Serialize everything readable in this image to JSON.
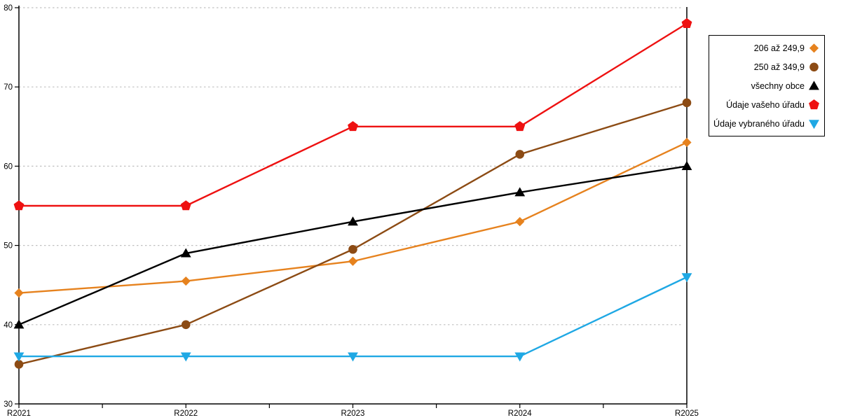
{
  "chart_data": {
    "type": "line",
    "title": "",
    "xlabel": "",
    "ylabel": "",
    "categories": [
      "R2021",
      "R2022",
      "R2023",
      "R2024",
      "R2025"
    ],
    "series": [
      {
        "name": "206 až 249,9",
        "marker": "diamond",
        "color": "#E6821E",
        "values": [
          44,
          45.5,
          48,
          53,
          63
        ]
      },
      {
        "name": "250 až 349,9",
        "marker": "circle",
        "color": "#8C4B14",
        "values": [
          35,
          40,
          49.5,
          61.5,
          68
        ]
      },
      {
        "name": "všechny obce",
        "marker": "triangle-up",
        "color": "#000000",
        "values": [
          40,
          49,
          53,
          56.7,
          60
        ]
      },
      {
        "name": "Údaje vašeho úřadu",
        "marker": "pentagon",
        "color": "#EE1111",
        "values": [
          55,
          55,
          65,
          65,
          78
        ]
      },
      {
        "name": "Údaje vybraného úřadu",
        "marker": "triangle-down",
        "color": "#1FA8E4",
        "values": [
          36,
          36,
          36,
          36,
          46
        ]
      }
    ],
    "ylim": [
      30,
      80
    ],
    "yticks": [
      30,
      40,
      50,
      60,
      70,
      80
    ],
    "grid": "horizontal-dashed",
    "gridline_color": "#C0C0C0",
    "axis_color": "#000000",
    "legend_position": "right"
  }
}
